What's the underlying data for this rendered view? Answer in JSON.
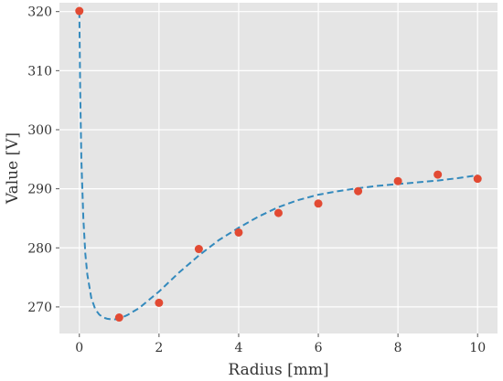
{
  "chart_data": {
    "type": "scatter",
    "title": "",
    "xlabel": "Radius [mm]",
    "ylabel": "Value [V]",
    "xlim": [
      -0.5,
      10.5
    ],
    "ylim": [
      265.5,
      321.5
    ],
    "xticks": [
      0,
      2,
      4,
      6,
      8,
      10
    ],
    "yticks": [
      270,
      280,
      290,
      300,
      310,
      320
    ],
    "grid": true,
    "background": "#e5e5e5",
    "series": [
      {
        "kind": "scatter",
        "color": "#e24a33",
        "x": [
          0,
          1,
          2,
          3,
          4,
          5,
          6,
          7,
          8,
          9,
          10
        ],
        "y": [
          320.1,
          268.2,
          270.7,
          279.8,
          282.6,
          285.9,
          287.5,
          289.6,
          291.3,
          292.4,
          291.7
        ]
      },
      {
        "kind": "line",
        "style": "dashed",
        "color": "#348abd",
        "x": [
          0,
          0.02,
          0.05,
          0.1,
          0.15,
          0.2,
          0.3,
          0.4,
          0.5,
          0.6,
          0.7,
          0.8,
          0.9,
          1.0,
          1.2,
          1.5,
          2.0,
          2.5,
          3.0,
          3.5,
          4.0,
          4.5,
          5.0,
          5.5,
          6.0,
          6.5,
          7.0,
          7.5,
          8.0,
          8.5,
          9.0,
          9.5,
          10.0
        ],
        "y": [
          320.0,
          307.0,
          295.0,
          285.0,
          279.0,
          275.5,
          271.5,
          269.6,
          268.7,
          268.2,
          268.0,
          267.9,
          267.9,
          268.0,
          268.6,
          269.8,
          272.6,
          275.8,
          278.7,
          281.3,
          283.4,
          285.3,
          286.9,
          288.1,
          289.0,
          289.6,
          290.1,
          290.5,
          290.8,
          291.1,
          291.4,
          291.8,
          292.3
        ]
      }
    ]
  }
}
